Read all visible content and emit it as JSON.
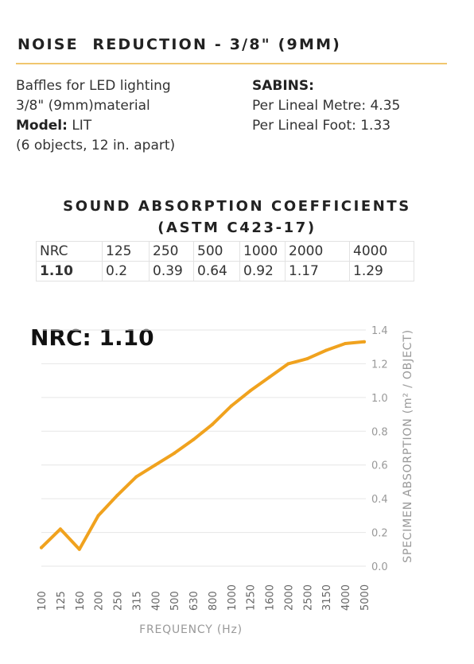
{
  "header": {
    "title": "NOISE  REDUCTION - 3/8\" (9MM)"
  },
  "product": {
    "line1": "Baffles for LED lighting",
    "line2": "3/8\" (9mm)material",
    "model_label": "Model:",
    "model_value": " LIT",
    "line4": "(6 objects, 12 in. apart)"
  },
  "sabins": {
    "label": "SABINS:",
    "per_metre": "Per Lineal Metre: 4.35",
    "per_foot": "Per Lineal Foot: 1.33"
  },
  "coefficients": {
    "title_line1": "SOUND ABSORPTION COEFFICIENTS",
    "title_line2": "(ASTM C423-17)",
    "headers": [
      "NRC",
      "125",
      "250",
      "500",
      "1000",
      "2000",
      "4000"
    ],
    "values": [
      "1.10",
      "0.2",
      "0.39",
      "0.64",
      "0.92",
      "1.17",
      "1.29"
    ]
  },
  "nrc_display": "NRC: 1.10",
  "colors": {
    "line": "#f0a21e",
    "grid": "#e6e6e6",
    "axis_text": "#999999",
    "title_rule": "#f0c66e"
  },
  "chart_data": {
    "type": "line",
    "xlabel": "FREQUENCY (Hz)",
    "ylabel": "SPECIMEN ABSORPTION (m² / OBJECT)",
    "ylim": [
      0,
      1.4
    ],
    "yticks": [
      "0.0",
      "0.2",
      "0.4",
      "0.6",
      "0.8",
      "1.0",
      "1.2",
      "1.4"
    ],
    "categories": [
      "100",
      "125",
      "160",
      "200",
      "250",
      "315",
      "400",
      "500",
      "630",
      "800",
      "1000",
      "1250",
      "1600",
      "2000",
      "2500",
      "3150",
      "4000",
      "5000"
    ],
    "values": [
      0.11,
      0.22,
      0.1,
      0.3,
      0.42,
      0.53,
      0.6,
      0.67,
      0.75,
      0.84,
      0.95,
      1.04,
      1.12,
      1.2,
      1.23,
      1.28,
      1.32,
      1.33
    ],
    "grid": "horizontal",
    "y_axis_side": "right"
  }
}
